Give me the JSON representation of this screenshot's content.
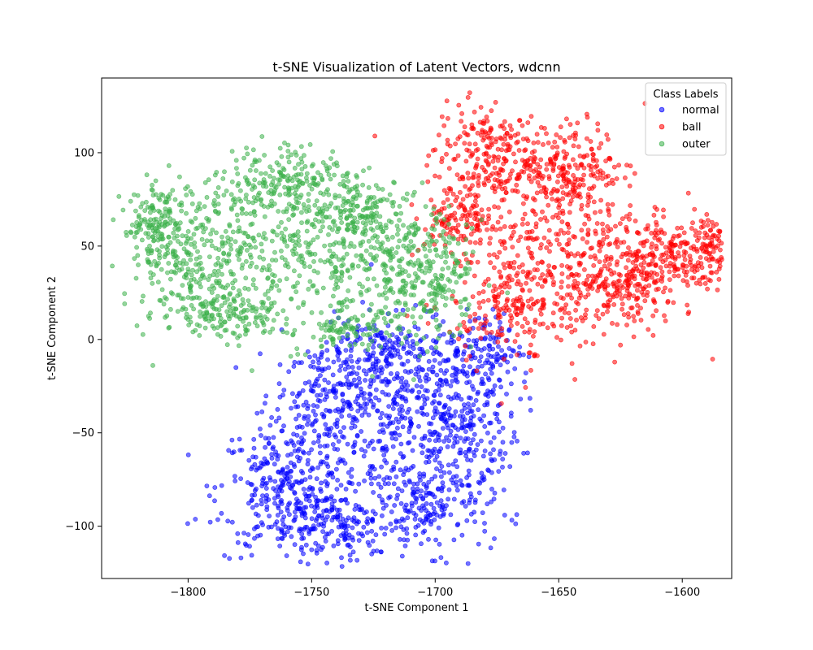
{
  "chart_data": {
    "type": "scatter",
    "title": "t-SNE Visualization of Latent Vectors, wdcnn",
    "xlabel": "t-SNE Component 1",
    "ylabel": "t-SNE Component 2",
    "xlim": [
      -1835,
      -1580
    ],
    "ylim": [
      -128,
      140
    ],
    "xticks": [
      -1800,
      -1750,
      -1700,
      -1650,
      -1600
    ],
    "yticks": [
      -100,
      -50,
      0,
      50,
      100
    ],
    "xtick_labels": [
      "−1800",
      "−1750",
      "−1700",
      "−1650",
      "−1600"
    ],
    "ytick_labels": [
      "−100",
      "−50",
      "0",
      "50",
      "100"
    ],
    "grid": false,
    "legend": {
      "title": "Class Labels",
      "placement": "top-right"
    },
    "series": [
      {
        "name": "normal",
        "color": "#0000ff",
        "clusters": [
          {
            "cx": -1718,
            "cy": -45,
            "sx": 18,
            "sy": 26,
            "n": 380
          },
          {
            "cx": -1760,
            "cy": -80,
            "sx": 14,
            "sy": 18,
            "n": 300
          },
          {
            "cx": -1690,
            "cy": -40,
            "sx": 12,
            "sy": 22,
            "n": 280
          },
          {
            "cx": -1740,
            "cy": -100,
            "sx": 16,
            "sy": 9,
            "n": 180
          },
          {
            "cx": -1700,
            "cy": -90,
            "sx": 12,
            "sy": 12,
            "n": 150
          },
          {
            "cx": -1720,
            "cy": -5,
            "sx": 14,
            "sy": 8,
            "n": 140
          },
          {
            "cx": -1745,
            "cy": -30,
            "sx": 10,
            "sy": 14,
            "n": 160
          },
          {
            "cx": -1680,
            "cy": -5,
            "sx": 8,
            "sy": 10,
            "n": 90
          }
        ]
      },
      {
        "name": "ball",
        "color": "#ff0000",
        "clusters": [
          {
            "cx": -1650,
            "cy": 50,
            "sx": 22,
            "sy": 28,
            "n": 420
          },
          {
            "cx": -1680,
            "cy": 100,
            "sx": 10,
            "sy": 14,
            "n": 200
          },
          {
            "cx": -1645,
            "cy": 92,
            "sx": 10,
            "sy": 12,
            "n": 180
          },
          {
            "cx": -1605,
            "cy": 45,
            "sx": 12,
            "sy": 10,
            "n": 220
          },
          {
            "cx": -1585,
            "cy": 52,
            "sx": 5,
            "sy": 8,
            "n": 90
          },
          {
            "cx": -1625,
            "cy": 25,
            "sx": 12,
            "sy": 10,
            "n": 150
          },
          {
            "cx": -1670,
            "cy": 20,
            "sx": 12,
            "sy": 10,
            "n": 140
          },
          {
            "cx": -1690,
            "cy": 65,
            "sx": 8,
            "sy": 10,
            "n": 120
          },
          {
            "cx": -1660,
            "cy": -8,
            "sx": 1,
            "sy": 1,
            "n": 6
          }
        ]
      },
      {
        "name": "outer",
        "color": "#3cb04a",
        "clusters": [
          {
            "cx": -1765,
            "cy": 45,
            "sx": 22,
            "sy": 22,
            "n": 380
          },
          {
            "cx": -1800,
            "cy": 50,
            "sx": 12,
            "sy": 16,
            "n": 220
          },
          {
            "cx": -1760,
            "cy": 85,
            "sx": 12,
            "sy": 10,
            "n": 180
          },
          {
            "cx": -1720,
            "cy": 40,
            "sx": 16,
            "sy": 18,
            "n": 280
          },
          {
            "cx": -1785,
            "cy": 15,
            "sx": 14,
            "sy": 7,
            "n": 150
          },
          {
            "cx": -1730,
            "cy": 70,
            "sx": 10,
            "sy": 8,
            "n": 120
          },
          {
            "cx": -1700,
            "cy": 30,
            "sx": 8,
            "sy": 14,
            "n": 130
          },
          {
            "cx": -1735,
            "cy": 5,
            "sx": 10,
            "sy": 5,
            "n": 80
          },
          {
            "cx": -1815,
            "cy": 60,
            "sx": 6,
            "sy": 10,
            "n": 90
          }
        ]
      }
    ]
  }
}
